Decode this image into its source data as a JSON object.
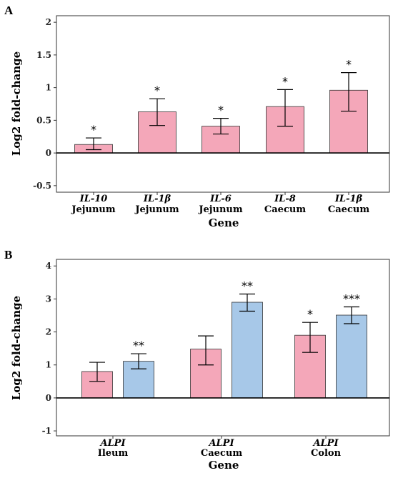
{
  "colors": {
    "pink": "#f4a7b9",
    "blue": "#a7c8e8",
    "stroke": "#333333",
    "axis": "#000000"
  },
  "chart_data": [
    {
      "panel": "A",
      "type": "bar",
      "xlabel": "Gene",
      "ylabel": "Log2 fold-change",
      "ylim": [
        -0.6,
        2.1
      ],
      "yticks": [
        -0.5,
        0,
        0.5,
        1,
        1.5,
        2
      ],
      "ytick_labels": [
        "-0.5",
        "0",
        "0.5",
        "1",
        "1.5",
        "2"
      ],
      "grid": false,
      "categories": [
        {
          "gene": "IL-10",
          "tissue": "Jejunum"
        },
        {
          "gene": "IL-1β",
          "tissue": "Jejunum"
        },
        {
          "gene": "IL-6",
          "tissue": "Jejunum"
        },
        {
          "gene": "IL-8",
          "tissue": "Caecum"
        },
        {
          "gene": "IL-1β",
          "tissue": "Caecum"
        }
      ],
      "series": [
        {
          "color_key": "pink",
          "values": [
            0.13,
            0.63,
            0.41,
            0.71,
            0.96
          ],
          "err_low": [
            0.05,
            0.42,
            0.29,
            0.41,
            0.64
          ],
          "err_high": [
            0.23,
            0.83,
            0.53,
            0.97,
            1.23
          ],
          "significance": [
            "*",
            "*",
            "*",
            "*",
            "*"
          ]
        }
      ]
    },
    {
      "panel": "B",
      "type": "bar",
      "xlabel": "Gene",
      "ylabel": "Log2 fold-change",
      "ylim": [
        -1.15,
        4.2
      ],
      "yticks": [
        -1,
        0,
        1,
        2,
        3,
        4
      ],
      "ytick_labels": [
        "-1",
        "0",
        "1",
        "2",
        "3",
        "4"
      ],
      "grid": false,
      "categories": [
        {
          "gene": "ALPI",
          "tissue": "Ileum"
        },
        {
          "gene": "ALPI",
          "tissue": "Caecum"
        },
        {
          "gene": "ALPI",
          "tissue": "Colon"
        }
      ],
      "series": [
        {
          "color_key": "pink",
          "values": [
            0.8,
            1.48,
            1.9
          ],
          "err_low": [
            0.5,
            1.0,
            1.38
          ],
          "err_high": [
            1.08,
            1.88,
            2.29
          ],
          "significance": [
            "",
            "",
            "*"
          ]
        },
        {
          "color_key": "blue",
          "values": [
            1.11,
            2.9,
            2.51
          ],
          "err_low": [
            0.88,
            2.63,
            2.25
          ],
          "err_high": [
            1.34,
            3.15,
            2.76
          ],
          "significance": [
            "**",
            "**",
            "***"
          ]
        }
      ]
    }
  ]
}
